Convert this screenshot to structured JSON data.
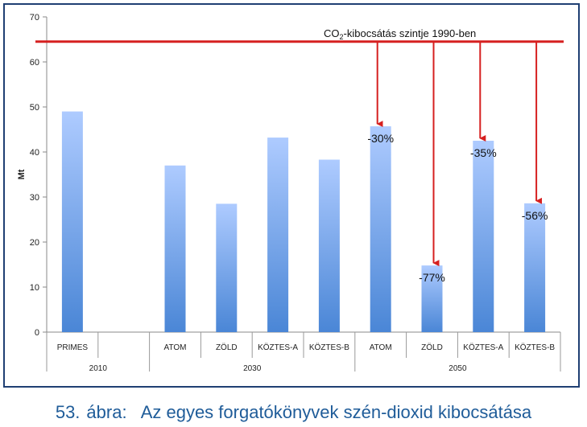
{
  "chart_data": {
    "type": "bar",
    "ylabel": "Mt",
    "ylim": [
      0,
      70
    ],
    "yticks": [
      0,
      10,
      20,
      30,
      40,
      50,
      60,
      70
    ],
    "categories": [
      "PRIMES",
      "",
      "ATOM",
      "ZÖLD",
      "KÖZTES-A",
      "KÖZTES-B",
      "ATOM",
      "ZÖLD",
      "KÖZTES-A",
      "KÖZTES-B"
    ],
    "values": [
      49,
      null,
      37,
      28.5,
      43.2,
      38.3,
      45.7,
      14.8,
      42.5,
      28.6
    ],
    "groups": [
      {
        "label": "2010",
        "span": 2
      },
      {
        "label": "2030",
        "span": 4
      },
      {
        "label": "2050",
        "span": 4
      }
    ],
    "reference_line": {
      "value": 64.5,
      "label_prefix": "CO",
      "label_sub": "2",
      "label_suffix": "-kibocsátás szintje 1990-ben",
      "color": "#d62020"
    },
    "annotations": [
      {
        "bar_index": 6,
        "text": "-30%"
      },
      {
        "bar_index": 7,
        "text": "-77%"
      },
      {
        "bar_index": 8,
        "text": "-35%"
      },
      {
        "bar_index": 9,
        "text": "-56%"
      }
    ],
    "bar_color_top": "#aecbff",
    "bar_color_bottom": "#4a86d6",
    "grid": false
  },
  "caption": {
    "number": "53.",
    "text": "ábra:   Az egyes forgatókönyvek szén-dioxid kibocsátása"
  }
}
